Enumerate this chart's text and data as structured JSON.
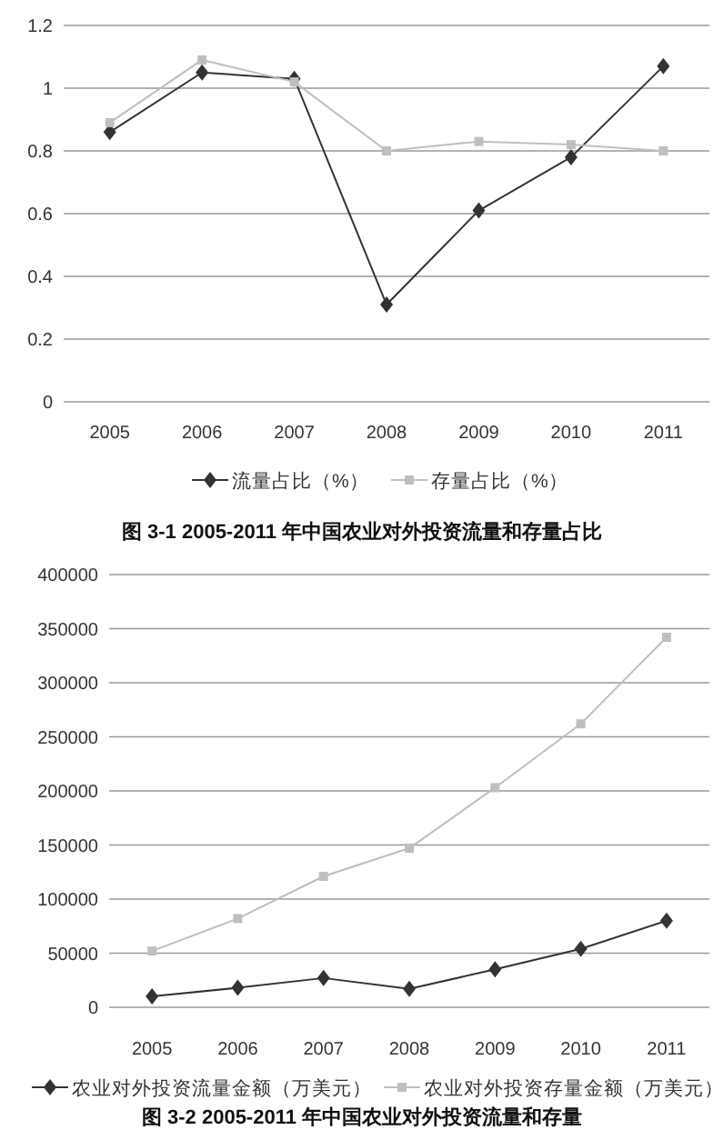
{
  "chart_data": [
    {
      "type": "line",
      "title": "图 3-1 2005-2011 年中国农业对外投资流量和存量占比",
      "categories": [
        "2005",
        "2006",
        "2007",
        "2008",
        "2009",
        "2010",
        "2011"
      ],
      "series": [
        {
          "name": "流量占比（%）",
          "color": "#333333",
          "marker": "diamond",
          "values": [
            0.86,
            1.05,
            1.03,
            0.31,
            0.61,
            0.78,
            1.07
          ]
        },
        {
          "name": "存量占比（%）",
          "color": "#bfbfbf",
          "marker": "square",
          "values": [
            0.89,
            1.09,
            1.02,
            0.8,
            0.83,
            0.82,
            0.8
          ]
        }
      ],
      "ylim": [
        0,
        1.2
      ],
      "yticks": [
        0,
        0.2,
        0.4,
        0.6,
        0.8,
        1,
        1.2
      ],
      "grid": "y",
      "legend": "bottom"
    },
    {
      "type": "line",
      "title": "图 3-2 2005-2011 年中国农业对外投资流量和存量",
      "categories": [
        "2005",
        "2006",
        "2007",
        "2008",
        "2009",
        "2010",
        "2011"
      ],
      "series": [
        {
          "name": "农业对外投资流量金额（万美元）",
          "color": "#333333",
          "marker": "diamond",
          "values": [
            10000,
            18000,
            27000,
            17000,
            35000,
            54000,
            80000
          ]
        },
        {
          "name": "农业对外投资存量金额（万美元）",
          "color": "#bfbfbf",
          "marker": "square",
          "values": [
            52000,
            82000,
            121000,
            147000,
            203000,
            262000,
            342000
          ]
        }
      ],
      "ylim": [
        0,
        400000
      ],
      "yticks": [
        0,
        50000,
        100000,
        150000,
        200000,
        250000,
        300000,
        350000,
        400000
      ],
      "grid": "y",
      "legend": "bottom"
    }
  ]
}
